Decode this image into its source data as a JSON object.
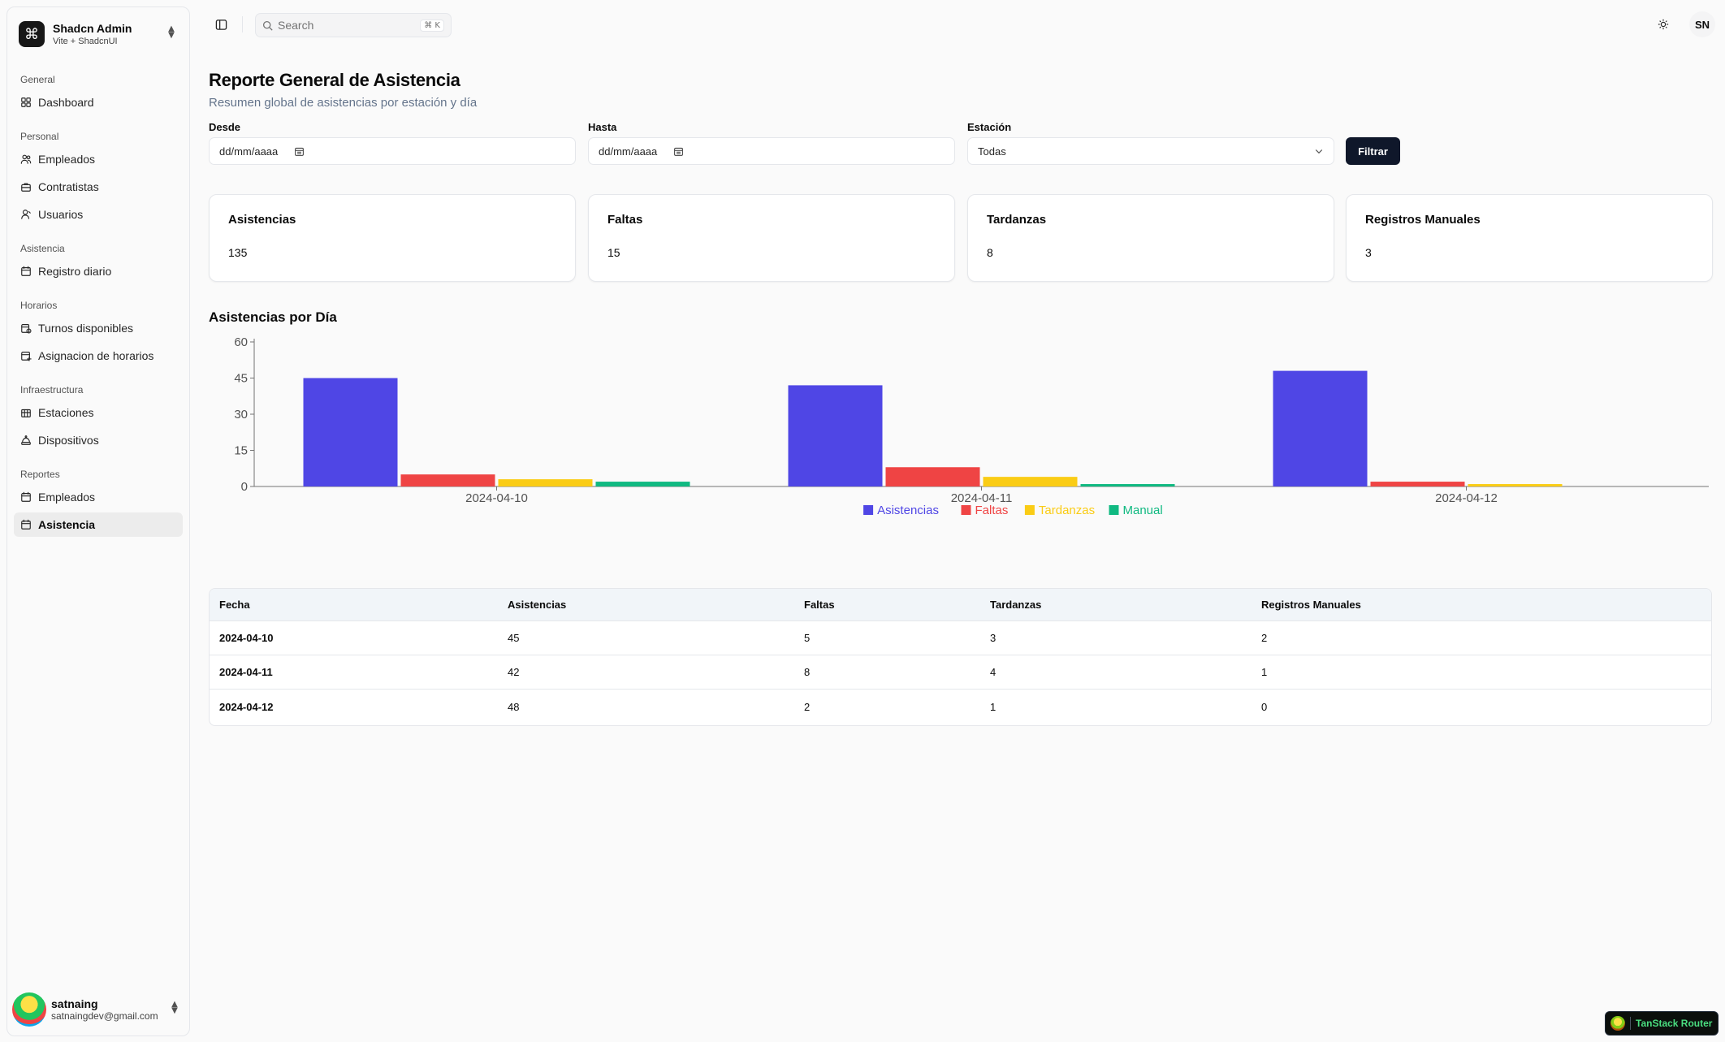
{
  "brand": {
    "title": "Shadcn Admin",
    "subtitle": "Vite + ShadcnUI",
    "logo_icon": "command-icon"
  },
  "sidebar": {
    "groups": [
      {
        "label": "General",
        "items": [
          {
            "label": "Dashboard",
            "icon": "layout-dashboard-icon"
          }
        ]
      },
      {
        "label": "Personal",
        "items": [
          {
            "label": "Empleados",
            "icon": "users-icon"
          },
          {
            "label": "Contratistas",
            "icon": "briefcase-icon"
          },
          {
            "label": "Usuarios",
            "icon": "user-icon"
          }
        ]
      },
      {
        "label": "Asistencia",
        "items": [
          {
            "label": "Registro diario",
            "icon": "calendar-icon"
          }
        ]
      },
      {
        "label": "Horarios",
        "items": [
          {
            "label": "Turnos disponibles",
            "icon": "calendar-clock-icon"
          },
          {
            "label": "Asignacion de horarios",
            "icon": "calendar-plus-icon"
          }
        ]
      },
      {
        "label": "Infraestructura",
        "items": [
          {
            "label": "Estaciones",
            "icon": "building-icon"
          },
          {
            "label": "Dispositivos",
            "icon": "device-icon"
          }
        ]
      },
      {
        "label": "Reportes",
        "items": [
          {
            "label": "Empleados",
            "icon": "calendar-icon"
          },
          {
            "label": "Asistencia",
            "icon": "calendar-icon",
            "active": true
          }
        ]
      }
    ]
  },
  "user": {
    "name": "satnaing",
    "email": "satnaingdev@gmail.com",
    "initials": "SN"
  },
  "search": {
    "placeholder": "Search",
    "shortcut": "⌘ K"
  },
  "page": {
    "title": "Reporte General de Asistencia",
    "subtitle": "Resumen global de asistencias por estación y día"
  },
  "filters": {
    "desde_label": "Desde",
    "desde_value": "dd/mm/aaaa",
    "hasta_label": "Hasta",
    "hasta_value": "dd/mm/aaaa",
    "estacion_label": "Estación",
    "estacion_value": "Todas",
    "button": "Filtrar"
  },
  "cards": [
    {
      "title": "Asistencias",
      "value": "135"
    },
    {
      "title": "Faltas",
      "value": "15"
    },
    {
      "title": "Tardanzas",
      "value": "8"
    },
    {
      "title": "Registros Manuales",
      "value": "3"
    }
  ],
  "chart_title": "Asistencias por Día",
  "chart_data": {
    "type": "bar",
    "title": "Asistencias por Día",
    "categories": [
      "2024-04-10",
      "2024-04-11",
      "2024-04-12"
    ],
    "series": [
      {
        "name": "Asistencias",
        "values": [
          45,
          42,
          48
        ],
        "color": "#4f46e5"
      },
      {
        "name": "Faltas",
        "values": [
          5,
          8,
          2
        ],
        "color": "#ef4444"
      },
      {
        "name": "Tardanzas",
        "values": [
          3,
          4,
          1
        ],
        "color": "#facc15"
      },
      {
        "name": "Manual",
        "values": [
          2,
          1,
          0
        ],
        "color": "#10b981"
      }
    ],
    "yticks": [
      0,
      15,
      30,
      45,
      60
    ],
    "ylim": [
      0,
      60
    ],
    "grid": false,
    "legend": "bottom-center"
  },
  "table": {
    "headers": [
      "Fecha",
      "Asistencias",
      "Faltas",
      "Tardanzas",
      "Registros Manuales"
    ],
    "rows": [
      [
        "2024-04-10",
        "45",
        "5",
        "3",
        "2"
      ],
      [
        "2024-04-11",
        "42",
        "8",
        "4",
        "1"
      ],
      [
        "2024-04-12",
        "48",
        "2",
        "1",
        "0"
      ]
    ]
  },
  "devtools": {
    "label": "TanStack Router"
  }
}
